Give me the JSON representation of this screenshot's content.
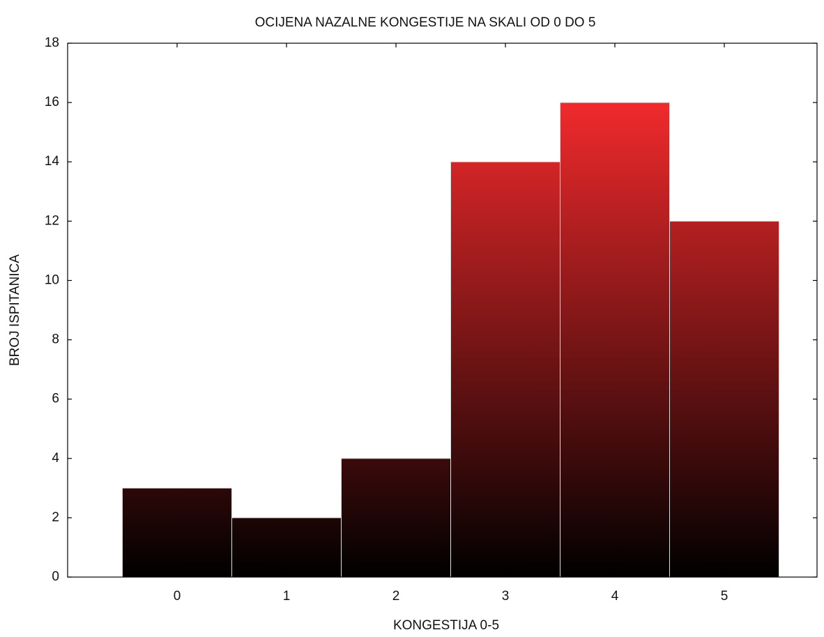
{
  "chart_data": {
    "type": "bar",
    "title": "OCIJENA NAZALNE KONGESTIJE NA SKALI OD 0 DO 5",
    "x_label": "KONGESTIJA 0-5",
    "y_label": "BROJ ISPITANICA",
    "categories": [
      "0",
      "1",
      "2",
      "3",
      "4",
      "5"
    ],
    "values": [
      3,
      2,
      4,
      14,
      16,
      12
    ],
    "color": "#f02a2c",
    "ylim": [
      0,
      18
    ],
    "yticks": [
      0,
      2,
      4,
      6,
      8,
      10,
      12,
      14,
      16,
      18
    ]
  }
}
